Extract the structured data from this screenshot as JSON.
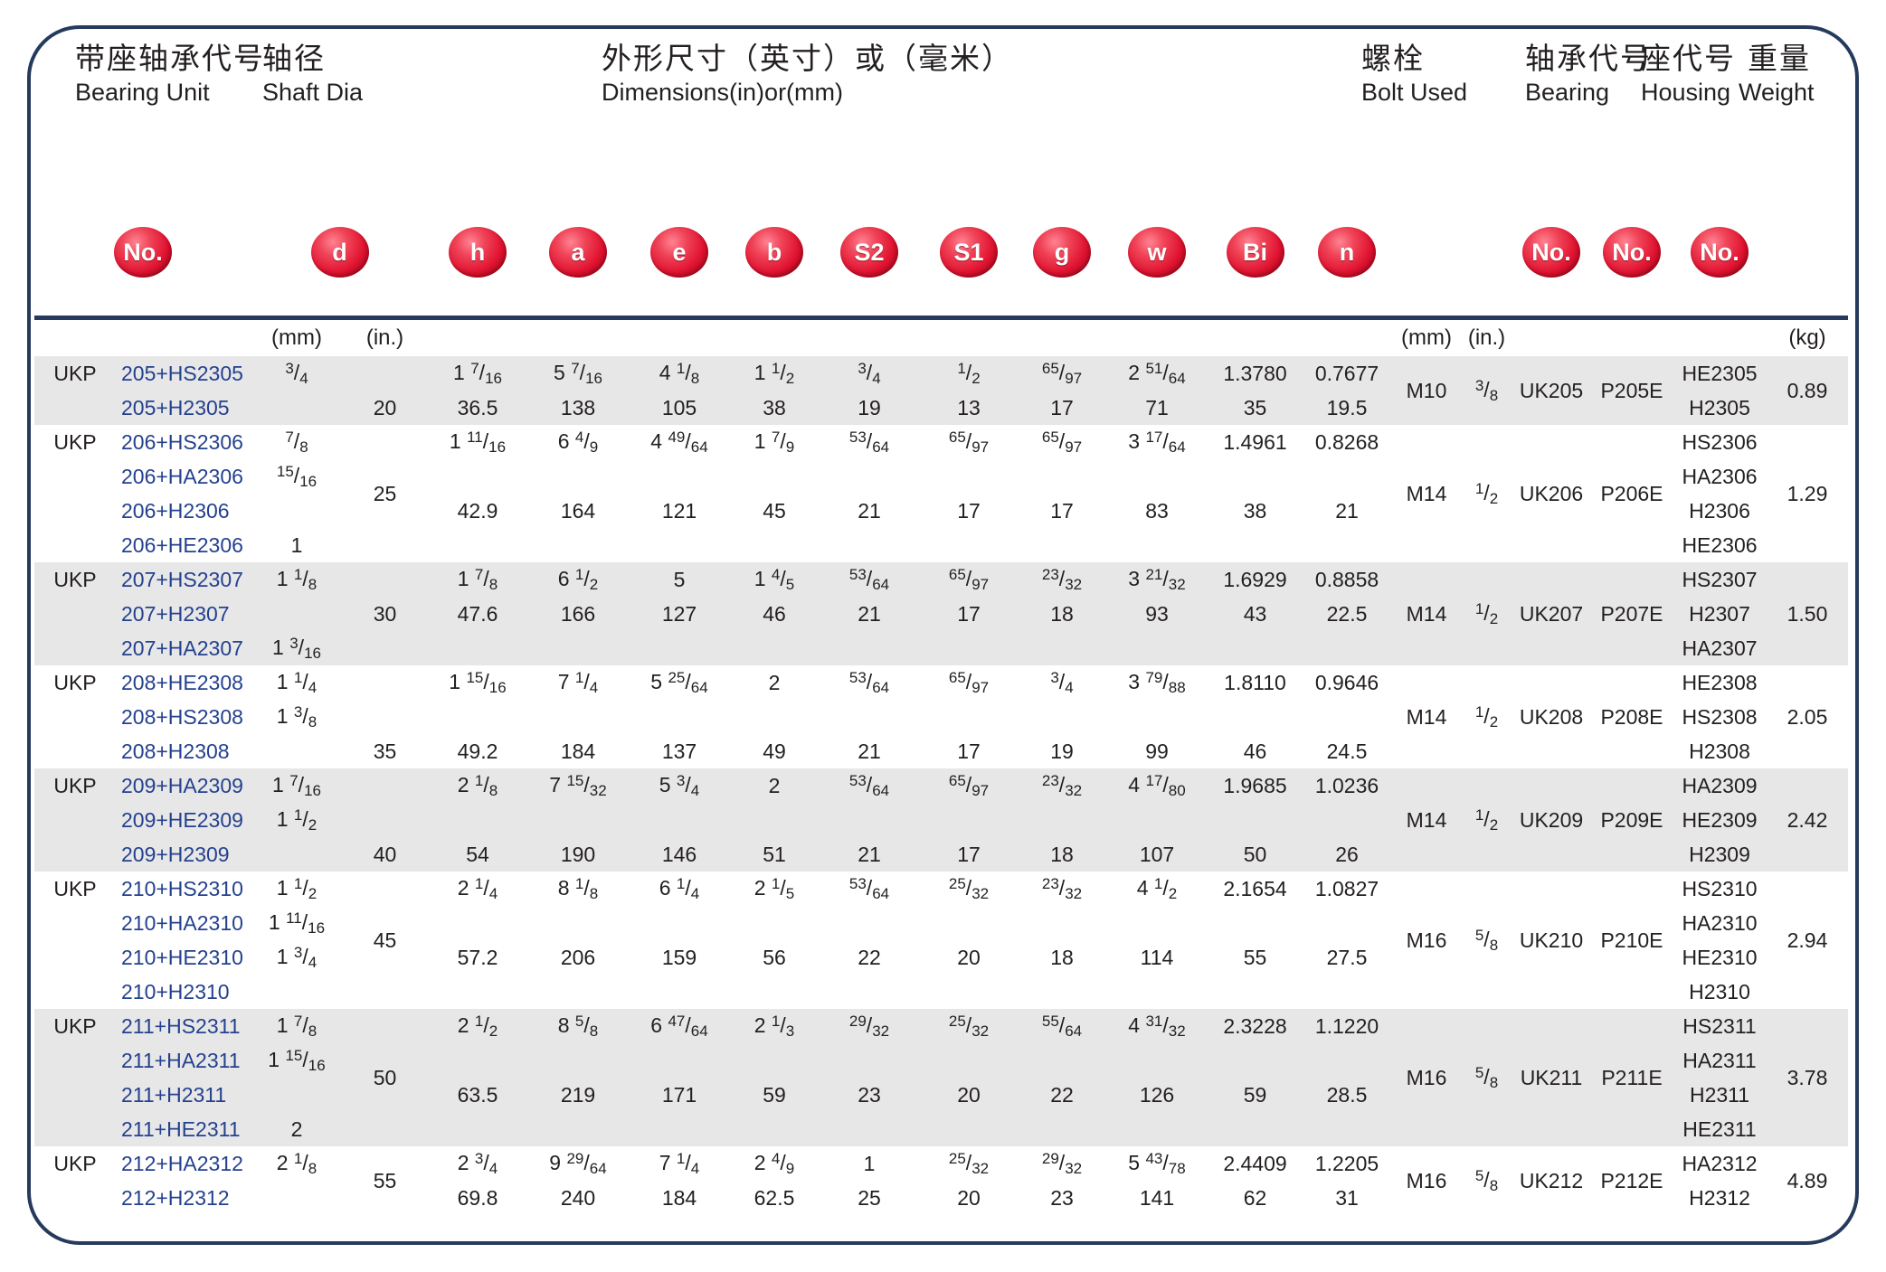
{
  "header": {
    "bearing_unit": {
      "zh": "带座轴承代号",
      "en": "Bearing Unit"
    },
    "shaft_dia": {
      "zh": "轴径",
      "en": "Shaft Dia"
    },
    "dimensions": {
      "zh": "外形尺寸（英寸）或（毫米）",
      "en": "Dimensions(in)or(mm)"
    },
    "bolt_used": {
      "zh": "螺栓",
      "en": "Bolt Used"
    },
    "bearing": {
      "zh": "轴承代号",
      "en": "Bearing"
    },
    "housing": {
      "zh": "座代号",
      "en": "Housing"
    },
    "weight": {
      "zh": "重量",
      "en": "Weight"
    }
  },
  "badges": {
    "no": "No.",
    "d": "d",
    "h": "h",
    "a": "a",
    "e": "e",
    "b": "b",
    "s2": "S2",
    "s1": "S1",
    "g": "g",
    "w": "w",
    "bi": "Bi",
    "n": "n",
    "bearing_no": "No.",
    "housing_no": "No.",
    "sleeve_no": "No."
  },
  "units": {
    "d_mm": "(mm)",
    "d_in": "(in.)",
    "bolt_mm": "(mm)",
    "bolt_in": "(in.)",
    "weight": "(kg)"
  },
  "colors": {
    "badge_red": "#e01230",
    "frame_navy": "#253a5c",
    "code_blue": "#24418f",
    "row_shade": "#e7e7e7"
  },
  "groups": [
    {
      "prefix": "UKP",
      "shade": true,
      "d_in": {
        "value": "20",
        "row": 1
      },
      "center": {
        "bolt_mm": "M10",
        "bolt_in": "3/8",
        "bearing": "UK205",
        "housing": "P205E",
        "weight": "0.89"
      },
      "rows": [
        {
          "code": "205+HS2305",
          "d_mm": "3/4",
          "h": "1 7/16",
          "a": "5 7/16",
          "e": "4 1/8",
          "b": "1 1/2",
          "s2": "3/4",
          "s1": "1/2",
          "g": "65/97",
          "w": "2 51/64",
          "bi": "1.3780",
          "n": "0.7677",
          "sleeve": "HE2305"
        },
        {
          "code": "205+H2305",
          "d_mm": "",
          "h": "36.5",
          "a": "138",
          "e": "105",
          "b": "38",
          "s2": "19",
          "s1": "13",
          "g": "17",
          "w": "71",
          "bi": "35",
          "n": "19.5",
          "sleeve": "H2305"
        }
      ]
    },
    {
      "prefix": "UKP",
      "shade": false,
      "d_in": {
        "value": "25",
        "row": "center"
      },
      "center": {
        "bolt_mm": "M14",
        "bolt_in": "1/2",
        "bearing": "UK206",
        "housing": "P206E",
        "weight": "1.29"
      },
      "rows": [
        {
          "code": "206+HS2306",
          "d_mm": "7/8",
          "h": "1 11/16",
          "a": "6 4/9",
          "e": "4 49/64",
          "b": "1 7/9",
          "s2": "53/64",
          "s1": "65/97",
          "g": "65/97",
          "w": "3 17/64",
          "bi": "1.4961",
          "n": "0.8268",
          "sleeve": "HS2306"
        },
        {
          "code": "206+HA2306",
          "d_mm": "15/16",
          "h": "",
          "a": "",
          "e": "",
          "b": "",
          "s2": "",
          "s1": "",
          "g": "",
          "w": "",
          "bi": "",
          "n": "",
          "sleeve": "HA2306"
        },
        {
          "code": "206+H2306",
          "d_mm": "",
          "h": "42.9",
          "a": "164",
          "e": "121",
          "b": "45",
          "s2": "21",
          "s1": "17",
          "g": "17",
          "w": "83",
          "bi": "38",
          "n": "21",
          "sleeve": "H2306"
        },
        {
          "code": "206+HE2306",
          "d_mm": "1",
          "h": "",
          "a": "",
          "e": "",
          "b": "",
          "s2": "",
          "s1": "",
          "g": "",
          "w": "",
          "bi": "",
          "n": "",
          "sleeve": "HE2306"
        }
      ]
    },
    {
      "prefix": "UKP",
      "shade": true,
      "d_in": {
        "value": "30",
        "row": 1
      },
      "center": {
        "bolt_mm": "M14",
        "bolt_in": "1/2",
        "bearing": "UK207",
        "housing": "P207E",
        "weight": "1.50"
      },
      "rows": [
        {
          "code": "207+HS2307",
          "d_mm": "1 1/8",
          "h": "1 7/8",
          "a": "6 1/2",
          "e": "5",
          "b": "1 4/5",
          "s2": "53/64",
          "s1": "65/97",
          "g": "23/32",
          "w": "3 21/32",
          "bi": "1.6929",
          "n": "0.8858",
          "sleeve": "HS2307"
        },
        {
          "code": "207+H2307",
          "d_mm": "",
          "h": "47.6",
          "a": "166",
          "e": "127",
          "b": "46",
          "s2": "21",
          "s1": "17",
          "g": "18",
          "w": "93",
          "bi": "43",
          "n": "22.5",
          "sleeve": "H2307"
        },
        {
          "code": "207+HA2307",
          "d_mm": "1 3/16",
          "h": "",
          "a": "",
          "e": "",
          "b": "",
          "s2": "",
          "s1": "",
          "g": "",
          "w": "",
          "bi": "",
          "n": "",
          "sleeve": "HA2307"
        }
      ]
    },
    {
      "prefix": "UKP",
      "shade": false,
      "d_in": {
        "value": "35",
        "row": 2
      },
      "center": {
        "bolt_mm": "M14",
        "bolt_in": "1/2",
        "bearing": "UK208",
        "housing": "P208E",
        "weight": "2.05"
      },
      "rows": [
        {
          "code": "208+HE2308",
          "d_mm": "1 1/4",
          "h": "1 15/16",
          "a": "7 1/4",
          "e": "5 25/64",
          "b": "2",
          "s2": "53/64",
          "s1": "65/97",
          "g": "3/4",
          "w": "3 79/88",
          "bi": "1.8110",
          "n": "0.9646",
          "sleeve": "HE2308"
        },
        {
          "code": "208+HS2308",
          "d_mm": "1 3/8",
          "h": "",
          "a": "",
          "e": "",
          "b": "",
          "s2": "",
          "s1": "",
          "g": "",
          "w": "",
          "bi": "",
          "n": "",
          "sleeve": "HS2308"
        },
        {
          "code": "208+H2308",
          "d_mm": "",
          "h": "49.2",
          "a": "184",
          "e": "137",
          "b": "49",
          "s2": "21",
          "s1": "17",
          "g": "19",
          "w": "99",
          "bi": "46",
          "n": "24.5",
          "sleeve": "H2308"
        }
      ]
    },
    {
      "prefix": "UKP",
      "shade": true,
      "d_in": {
        "value": "40",
        "row": 2
      },
      "center": {
        "bolt_mm": "M14",
        "bolt_in": "1/2",
        "bearing": "UK209",
        "housing": "P209E",
        "weight": "2.42"
      },
      "rows": [
        {
          "code": "209+HA2309",
          "d_mm": "1 7/16",
          "h": "2 1/8",
          "a": "7 15/32",
          "e": "5 3/4",
          "b": "2",
          "s2": "53/64",
          "s1": "65/97",
          "g": "23/32",
          "w": "4 17/80",
          "bi": "1.9685",
          "n": "1.0236",
          "sleeve": "HA2309"
        },
        {
          "code": "209+HE2309",
          "d_mm": "1 1/2",
          "h": "",
          "a": "",
          "e": "",
          "b": "",
          "s2": "",
          "s1": "",
          "g": "",
          "w": "",
          "bi": "",
          "n": "",
          "sleeve": "HE2309"
        },
        {
          "code": "209+H2309",
          "d_mm": "",
          "h": "54",
          "a": "190",
          "e": "146",
          "b": "51",
          "s2": "21",
          "s1": "17",
          "g": "18",
          "w": "107",
          "bi": "50",
          "n": "26",
          "sleeve": "H2309"
        }
      ]
    },
    {
      "prefix": "UKP",
      "shade": false,
      "d_in": {
        "value": "45",
        "row": "center"
      },
      "center": {
        "bolt_mm": "M16",
        "bolt_in": "5/8",
        "bearing": "UK210",
        "housing": "P210E",
        "weight": "2.94"
      },
      "rows": [
        {
          "code": "210+HS2310",
          "d_mm": "1 1/2",
          "h": "2 1/4",
          "a": "8 1/8",
          "e": "6 1/4",
          "b": "2 1/5",
          "s2": "53/64",
          "s1": "25/32",
          "g": "23/32",
          "w": "4 1/2",
          "bi": "2.1654",
          "n": "1.0827",
          "sleeve": "HS2310"
        },
        {
          "code": "210+HA2310",
          "d_mm": "1 11/16",
          "h": "",
          "a": "",
          "e": "",
          "b": "",
          "s2": "",
          "s1": "",
          "g": "",
          "w": "",
          "bi": "",
          "n": "",
          "sleeve": "HA2310"
        },
        {
          "code": "210+HE2310",
          "d_mm": "1 3/4",
          "h": "57.2",
          "a": "206",
          "e": "159",
          "b": "56",
          "s2": "22",
          "s1": "20",
          "g": "18",
          "w": "114",
          "bi": "55",
          "n": "27.5",
          "sleeve": "HE2310"
        },
        {
          "code": "210+H2310",
          "d_mm": "",
          "h": "",
          "a": "",
          "e": "",
          "b": "",
          "s2": "",
          "s1": "",
          "g": "",
          "w": "",
          "bi": "",
          "n": "",
          "sleeve": "H2310"
        }
      ]
    },
    {
      "prefix": "UKP",
      "shade": true,
      "d_in": {
        "value": "50",
        "row": "center"
      },
      "center": {
        "bolt_mm": "M16",
        "bolt_in": "5/8",
        "bearing": "UK211",
        "housing": "P211E",
        "weight": "3.78"
      },
      "rows": [
        {
          "code": "211+HS2311",
          "d_mm": "1 7/8",
          "h": "2 1/2",
          "a": "8 5/8",
          "e": "6 47/64",
          "b": "2 1/3",
          "s2": "29/32",
          "s1": "25/32",
          "g": "55/64",
          "w": "4 31/32",
          "bi": "2.3228",
          "n": "1.1220",
          "sleeve": "HS2311"
        },
        {
          "code": "211+HA2311",
          "d_mm": "1 15/16",
          "h": "",
          "a": "",
          "e": "",
          "b": "",
          "s2": "",
          "s1": "",
          "g": "",
          "w": "",
          "bi": "",
          "n": "",
          "sleeve": "HA2311"
        },
        {
          "code": "211+H2311",
          "d_mm": "",
          "h": "63.5",
          "a": "219",
          "e": "171",
          "b": "59",
          "s2": "23",
          "s1": "20",
          "g": "22",
          "w": "126",
          "bi": "59",
          "n": "28.5",
          "sleeve": "H2311"
        },
        {
          "code": "211+HE2311",
          "d_mm": "2",
          "h": "",
          "a": "",
          "e": "",
          "b": "",
          "s2": "",
          "s1": "",
          "g": "",
          "w": "",
          "bi": "",
          "n": "",
          "sleeve": "HE2311"
        }
      ]
    },
    {
      "prefix": "UKP",
      "shade": false,
      "d_in": {
        "value": "55",
        "row": "center"
      },
      "center": {
        "bolt_mm": "M16",
        "bolt_in": "5/8",
        "bearing": "UK212",
        "housing": "P212E",
        "weight": "4.89"
      },
      "rows": [
        {
          "code": "212+HA2312",
          "d_mm": "2 1/8",
          "h": "2 3/4",
          "a": "9 29/64",
          "e": "7 1/4",
          "b": "2 4/9",
          "s2": "1",
          "s1": "25/32",
          "g": "29/32",
          "w": "5 43/78",
          "bi": "2.4409",
          "n": "1.2205",
          "sleeve": "HA2312"
        },
        {
          "code": "212+H2312",
          "d_mm": "",
          "h": "69.8",
          "a": "240",
          "e": "184",
          "b": "62.5",
          "s2": "25",
          "s1": "20",
          "g": "23",
          "w": "141",
          "bi": "62",
          "n": "31",
          "sleeve": "H2312"
        }
      ]
    }
  ]
}
